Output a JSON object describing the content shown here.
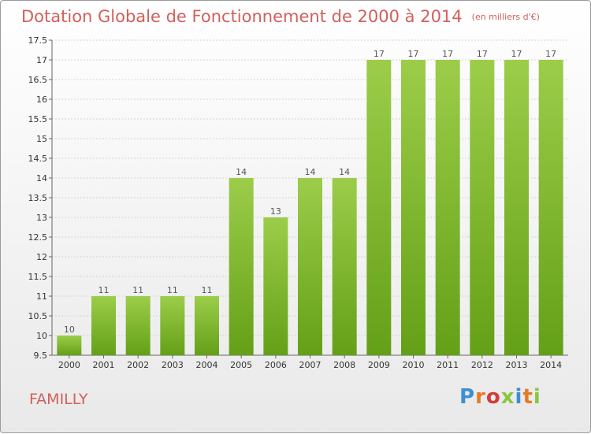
{
  "header": {
    "title": "Dotation Globale de Fonctionnement de 2000 à 2014",
    "subtitle": "(en milliers d'€)"
  },
  "footer": {
    "place_name": "FAMILLY",
    "logo_text": "Proxiti"
  },
  "colors": {
    "title": "#d2605b",
    "bar_light": "#9ccd4a",
    "bar_dark": "#64a017",
    "logo_colors": [
      "#3d8fd1",
      "#e8792a",
      "#d63a3a",
      "#8cc63f",
      "#3d8fd1",
      "#e8792a",
      "#8cc63f"
    ]
  },
  "chart_data": {
    "type": "bar",
    "title": "Dotation Globale de Fonctionnement de 2000 à 2014",
    "subtitle": "(en milliers d'€)",
    "categories": [
      "2000",
      "2001",
      "2002",
      "2003",
      "2004",
      "2005",
      "2006",
      "2007",
      "2008",
      "2009",
      "2010",
      "2011",
      "2012",
      "2013",
      "2014"
    ],
    "values": [
      10,
      11,
      11,
      11,
      11,
      14,
      13,
      14,
      14,
      17,
      17,
      17,
      17,
      17,
      17
    ],
    "ylim": [
      9.5,
      17.5
    ],
    "yticks": [
      9.5,
      10,
      10.5,
      11,
      11.5,
      12,
      12.5,
      13,
      13.5,
      14,
      14.5,
      15,
      15.5,
      16,
      16.5,
      17,
      17.5
    ],
    "ytick_labels": [
      "9.5",
      "10",
      "10.5",
      "11",
      "11.5",
      "12",
      "12.5",
      "13",
      "13.5",
      "14",
      "14.5",
      "15",
      "15.5",
      "16",
      "16.5",
      "17",
      "17.5"
    ],
    "xlabel": "",
    "ylabel": "",
    "grid": true,
    "legend": "none"
  }
}
